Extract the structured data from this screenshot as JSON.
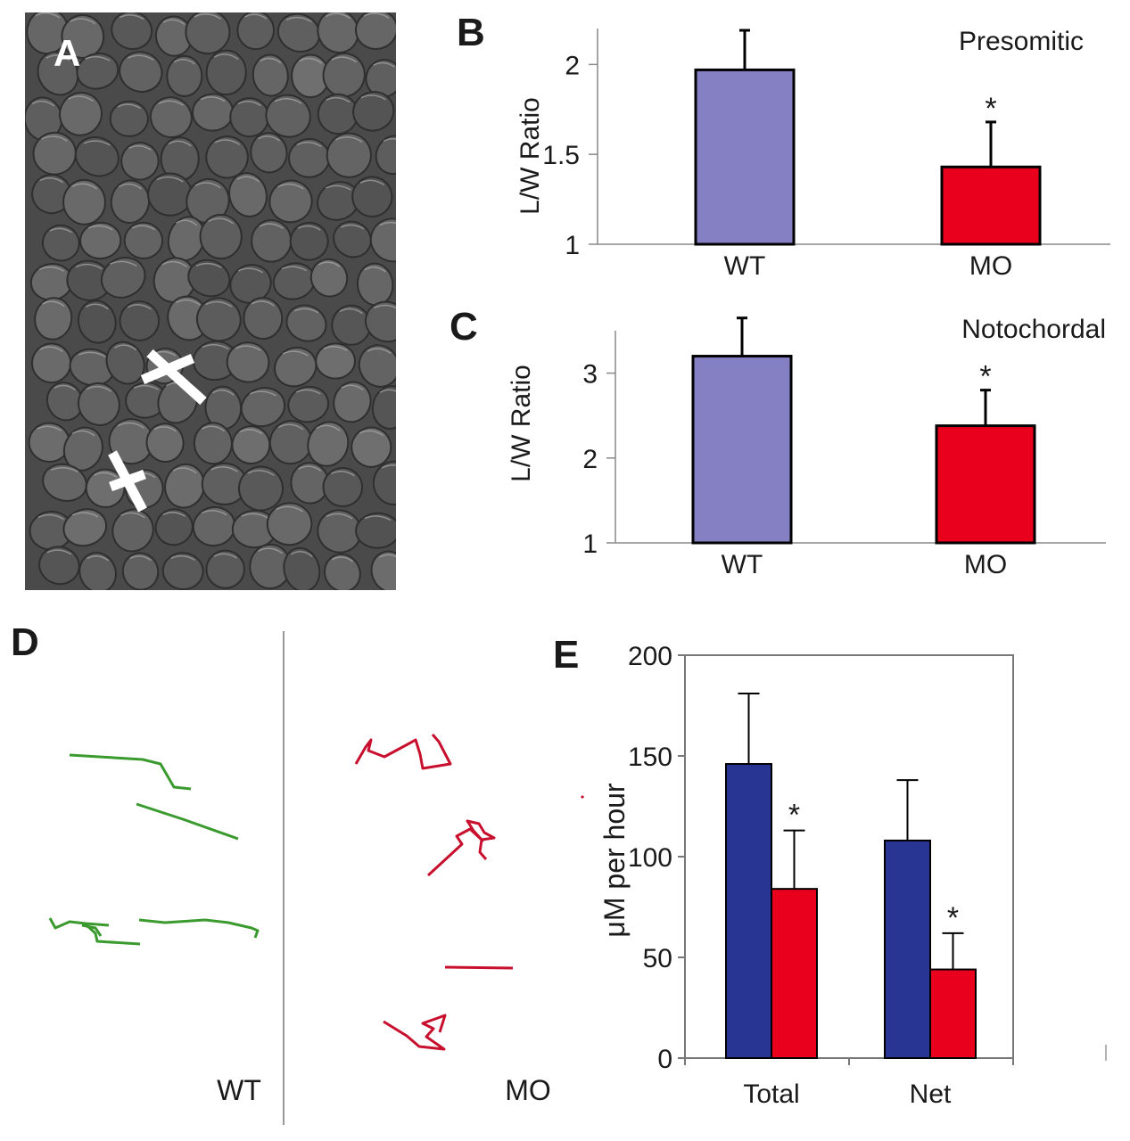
{
  "panels": {
    "a": "A",
    "b": "B",
    "c": "C",
    "d": "D",
    "e": "E"
  },
  "tracks": {
    "wt_label": "WT",
    "mo_label": "MO",
    "wt_color": "#3a9a2e",
    "mo_color": "#c8102e"
  },
  "colors": {
    "wt_bar_light": "#8580c4",
    "mo_bar": "#e8001c",
    "wt_bar_dark": "#283593"
  },
  "chart_data": [
    {
      "panel": "B",
      "type": "bar",
      "title": "Presomitic",
      "ylabel": "L/W Ratio",
      "categories": [
        "WT",
        "MO"
      ],
      "values": [
        1.97,
        1.43
      ],
      "errors": [
        0.22,
        0.25
      ],
      "significance": [
        "",
        "*"
      ],
      "ylim": [
        1,
        2.2
      ],
      "yticks": [
        1,
        1.5,
        2
      ],
      "ytick_labels": [
        "1",
        "1.5",
        "2"
      ]
    },
    {
      "panel": "C",
      "type": "bar",
      "title": "Notochordal",
      "ylabel": "L/W Ratio",
      "categories": [
        "WT",
        "MO"
      ],
      "values": [
        3.2,
        2.38
      ],
      "errors": [
        0.45,
        0.42
      ],
      "significance": [
        "",
        "*"
      ],
      "ylim": [
        1,
        3.5
      ],
      "yticks": [
        1,
        2,
        3
      ],
      "ytick_labels": [
        "1",
        "2",
        "3"
      ]
    },
    {
      "panel": "E",
      "type": "bar",
      "ylabel": "μM per hour",
      "categories": [
        "Total",
        "Net"
      ],
      "series": [
        {
          "values": [
            146,
            108
          ],
          "errors": [
            35,
            30
          ]
        },
        {
          "values": [
            84,
            44
          ],
          "errors": [
            29,
            18
          ]
        }
      ],
      "significance": [
        [
          "",
          "*"
        ],
        [
          "",
          "*"
        ]
      ],
      "ylim": [
        0,
        200
      ],
      "yticks": [
        0,
        50,
        100,
        150,
        200
      ],
      "ytick_labels": [
        "0",
        "50",
        "100",
        "150",
        "200"
      ]
    }
  ]
}
